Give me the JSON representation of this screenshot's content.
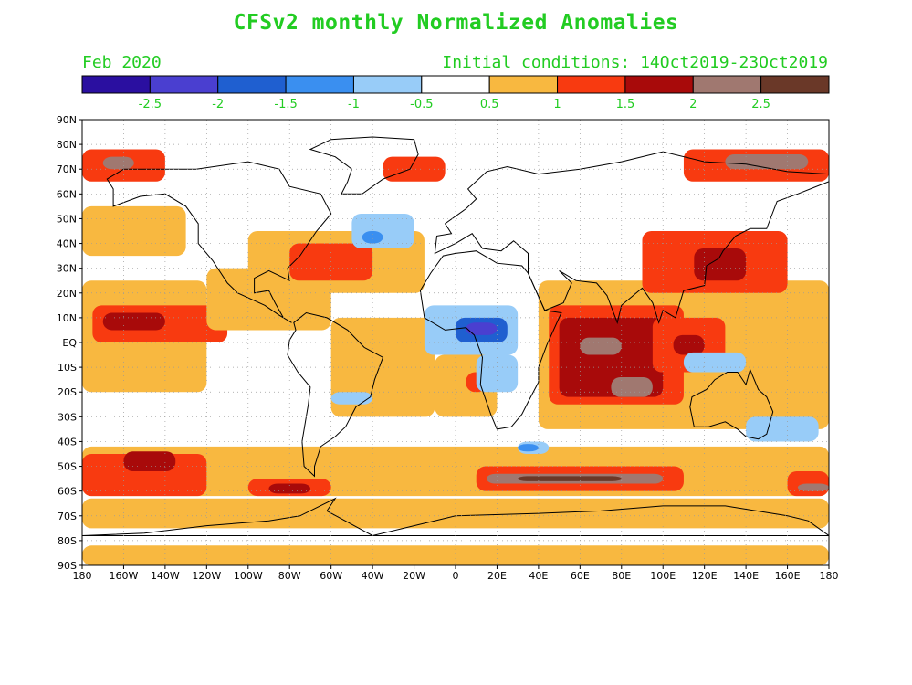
{
  "title": "CFSv2 monthly Normalized Anomalies",
  "month_label": "Feb 2020",
  "init_label": "Initial conditions: 14Oct2019-23Oct2019",
  "colorbar": {
    "colors": [
      "#2a0fa0",
      "#4a3fd0",
      "#1f5fd0",
      "#3a8ff0",
      "#98ccf8",
      "#ffffff",
      "#f8b840",
      "#f83a10",
      "#a80a0a",
      "#a07870",
      "#6a3828"
    ],
    "labels": [
      "-2.5",
      "-2",
      "-1.5",
      "-1",
      "-0.5",
      "0.5",
      "1",
      "1.5",
      "2",
      "2.5"
    ]
  },
  "lat_labels": [
    "90N",
    "80N",
    "70N",
    "60N",
    "50N",
    "40N",
    "30N",
    "20N",
    "10N",
    "EQ",
    "10S",
    "20S",
    "30S",
    "40S",
    "50S",
    "60S",
    "70S",
    "80S",
    "90S"
  ],
  "lon_labels": [
    "180",
    "160W",
    "140W",
    "120W",
    "100W",
    "80W",
    "60W",
    "40W",
    "20W",
    "0",
    "20E",
    "40E",
    "60E",
    "80E",
    "100E",
    "120E",
    "140E",
    "160E",
    "180"
  ],
  "anomaly_regions": [
    {
      "level": 6,
      "lon": [
        -180,
        180
      ],
      "lat": [
        -90,
        -82
      ]
    },
    {
      "level": 6,
      "lon": [
        -180,
        -120
      ],
      "lat": [
        -20,
        25
      ]
    },
    {
      "level": 7,
      "lon": [
        -175,
        -110
      ],
      "lat": [
        0,
        15
      ]
    },
    {
      "level": 8,
      "lon": [
        -170,
        -140
      ],
      "lat": [
        5,
        12
      ]
    },
    {
      "level": 6,
      "lon": [
        -120,
        -60
      ],
      "lat": [
        5,
        30
      ]
    },
    {
      "level": 6,
      "lon": [
        -100,
        -15
      ],
      "lat": [
        20,
        45
      ]
    },
    {
      "level": 7,
      "lon": [
        -80,
        -40
      ],
      "lat": [
        25,
        40
      ]
    },
    {
      "level": 6,
      "lon": [
        -60,
        -10
      ],
      "lat": [
        -30,
        10
      ]
    },
    {
      "level": 6,
      "lon": [
        -10,
        20
      ],
      "lat": [
        -30,
        -5
      ]
    },
    {
      "level": 7,
      "lon": [
        5,
        15
      ],
      "lat": [
        -20,
        -12
      ]
    },
    {
      "level": 6,
      "lon": [
        40,
        180
      ],
      "lat": [
        -35,
        25
      ]
    },
    {
      "level": 7,
      "lon": [
        45,
        110
      ],
      "lat": [
        -25,
        15
      ]
    },
    {
      "level": 8,
      "lon": [
        50,
        100
      ],
      "lat": [
        -22,
        10
      ]
    },
    {
      "level": 9,
      "lon": [
        60,
        80
      ],
      "lat": [
        -5,
        2
      ]
    },
    {
      "level": 9,
      "lon": [
        75,
        95
      ],
      "lat": [
        -22,
        -14
      ]
    },
    {
      "level": 7,
      "lon": [
        90,
        160
      ],
      "lat": [
        20,
        45
      ]
    },
    {
      "level": 8,
      "lon": [
        115,
        140
      ],
      "lat": [
        25,
        38
      ]
    },
    {
      "level": 7,
      "lon": [
        95,
        130
      ],
      "lat": [
        -12,
        10
      ]
    },
    {
      "level": 8,
      "lon": [
        105,
        120
      ],
      "lat": [
        -5,
        3
      ]
    },
    {
      "level": 6,
      "lon": [
        140,
        180
      ],
      "lat": [
        -5,
        15
      ]
    },
    {
      "level": 6,
      "lon": [
        -180,
        180
      ],
      "lat": [
        -62,
        -42
      ]
    },
    {
      "level": 7,
      "lon": [
        -180,
        -120
      ],
      "lat": [
        -62,
        -45
      ]
    },
    {
      "level": 8,
      "lon": [
        -160,
        -135
      ],
      "lat": [
        -52,
        -44
      ]
    },
    {
      "level": 7,
      "lon": [
        -100,
        -60
      ],
      "lat": [
        -62,
        -55
      ]
    },
    {
      "level": 8,
      "lon": [
        -90,
        -70
      ],
      "lat": [
        -61,
        -57
      ]
    },
    {
      "level": 7,
      "lon": [
        10,
        110
      ],
      "lat": [
        -60,
        -50
      ]
    },
    {
      "level": 9,
      "lon": [
        15,
        100
      ],
      "lat": [
        -57,
        -53
      ]
    },
    {
      "level": 10,
      "lon": [
        30,
        80
      ],
      "lat": [
        -56,
        -54
      ]
    },
    {
      "level": 7,
      "lon": [
        160,
        180
      ],
      "lat": [
        -62,
        -52
      ]
    },
    {
      "level": 9,
      "lon": [
        165,
        180
      ],
      "lat": [
        -60,
        -57
      ]
    },
    {
      "level": 6,
      "lon": [
        -180,
        180
      ],
      "lat": [
        -75,
        -63
      ]
    },
    {
      "level": 7,
      "lon": [
        -180,
        -140
      ],
      "lat": [
        65,
        78
      ]
    },
    {
      "level": 9,
      "lon": [
        -170,
        -155
      ],
      "lat": [
        70,
        75
      ]
    },
    {
      "level": 7,
      "lon": [
        110,
        180
      ],
      "lat": [
        65,
        78
      ]
    },
    {
      "level": 9,
      "lon": [
        130,
        170
      ],
      "lat": [
        70,
        76
      ]
    },
    {
      "level": 6,
      "lon": [
        -180,
        -130
      ],
      "lat": [
        35,
        55
      ]
    },
    {
      "level": 7,
      "lon": [
        -35,
        -5
      ],
      "lat": [
        65,
        75
      ]
    },
    {
      "level": 4,
      "lon": [
        -50,
        -20
      ],
      "lat": [
        38,
        52
      ]
    },
    {
      "level": 3,
      "lon": [
        -45,
        -35
      ],
      "lat": [
        40,
        45
      ]
    },
    {
      "level": 4,
      "lon": [
        -15,
        30
      ],
      "lat": [
        -5,
        15
      ]
    },
    {
      "level": 2,
      "lon": [
        0,
        25
      ],
      "lat": [
        0,
        10
      ]
    },
    {
      "level": 1,
      "lon": [
        5,
        20
      ],
      "lat": [
        3,
        8
      ]
    },
    {
      "level": 4,
      "lon": [
        10,
        30
      ],
      "lat": [
        -20,
        -5
      ]
    },
    {
      "level": 4,
      "lon": [
        -60,
        -40
      ],
      "lat": [
        -25,
        -20
      ]
    },
    {
      "level": 4,
      "lon": [
        30,
        45
      ],
      "lat": [
        -45,
        -40
      ]
    },
    {
      "level": 3,
      "lon": [
        30,
        40
      ],
      "lat": [
        -44,
        -41
      ]
    },
    {
      "level": 4,
      "lon": [
        140,
        175
      ],
      "lat": [
        -40,
        -30
      ]
    },
    {
      "level": 4,
      "lon": [
        110,
        140
      ],
      "lat": [
        -12,
        -4
      ]
    }
  ]
}
